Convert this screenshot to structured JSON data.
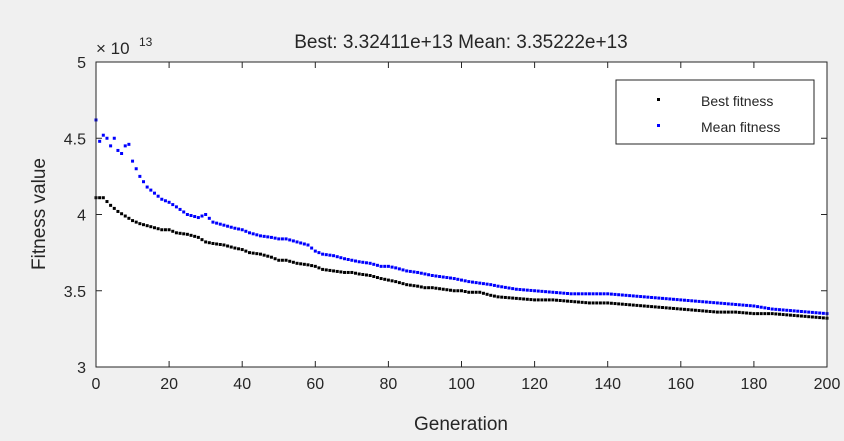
{
  "chart_data": {
    "type": "scatter",
    "title": "Best: 3.32411e+13 Mean: 3.35222e+13",
    "xlabel": "Generation",
    "ylabel": "Fitness value",
    "y_exponent_label": "× 10",
    "y_exponent_power": "13",
    "xlim": [
      0,
      200
    ],
    "ylim": [
      3,
      5
    ],
    "xticks": [
      0,
      20,
      40,
      60,
      80,
      100,
      120,
      140,
      160,
      180,
      200
    ],
    "yticks": [
      3,
      3.5,
      4,
      4.5,
      5
    ],
    "xtick_labels": [
      "0",
      "20",
      "40",
      "60",
      "80",
      "100",
      "120",
      "140",
      "160",
      "180",
      "200"
    ],
    "ytick_labels": [
      "3",
      "3.5",
      "4",
      "4.5",
      "5"
    ],
    "grid": false,
    "legend_position": "top-right",
    "y_scale_factor": 10000000000000.0,
    "series": [
      {
        "name": "Best fitness",
        "color": "#000000",
        "key_x": [
          0,
          2,
          4,
          6,
          8,
          10,
          12,
          15,
          18,
          20,
          22,
          25,
          28,
          30,
          32,
          35,
          38,
          40,
          42,
          45,
          48,
          50,
          52,
          55,
          58,
          60,
          62,
          65,
          68,
          70,
          72,
          75,
          78,
          80,
          82,
          85,
          88,
          90,
          92,
          95,
          98,
          100,
          102,
          105,
          108,
          110,
          115,
          120,
          125,
          130,
          135,
          140,
          145,
          150,
          155,
          160,
          165,
          170,
          175,
          180,
          185,
          190,
          195,
          200
        ],
        "key_y": [
          4.11,
          4.11,
          4.06,
          4.02,
          3.99,
          3.96,
          3.94,
          3.92,
          3.9,
          3.9,
          3.88,
          3.87,
          3.85,
          3.82,
          3.81,
          3.8,
          3.78,
          3.77,
          3.75,
          3.74,
          3.72,
          3.7,
          3.7,
          3.68,
          3.67,
          3.66,
          3.64,
          3.63,
          3.62,
          3.62,
          3.61,
          3.6,
          3.58,
          3.57,
          3.56,
          3.54,
          3.53,
          3.52,
          3.52,
          3.51,
          3.5,
          3.5,
          3.49,
          3.49,
          3.47,
          3.46,
          3.45,
          3.44,
          3.44,
          3.43,
          3.42,
          3.42,
          3.41,
          3.4,
          3.39,
          3.38,
          3.37,
          3.36,
          3.36,
          3.35,
          3.35,
          3.34,
          3.33,
          3.32
        ]
      },
      {
        "name": "Mean fitness",
        "color": "#0000ff",
        "key_x": [
          0,
          1,
          2,
          3,
          4,
          5,
          6,
          7,
          8,
          9,
          10,
          12,
          14,
          16,
          18,
          20,
          22,
          25,
          28,
          30,
          32,
          35,
          38,
          40,
          42,
          45,
          48,
          50,
          52,
          55,
          58,
          60,
          62,
          65,
          68,
          70,
          72,
          75,
          78,
          80,
          82,
          85,
          88,
          90,
          92,
          95,
          98,
          100,
          102,
          105,
          108,
          110,
          115,
          120,
          125,
          130,
          135,
          140,
          145,
          150,
          155,
          160,
          165,
          170,
          175,
          180,
          185,
          190,
          195,
          200
        ],
        "key_y": [
          4.62,
          4.48,
          4.52,
          4.5,
          4.45,
          4.5,
          4.42,
          4.4,
          4.45,
          4.46,
          4.35,
          4.25,
          4.18,
          4.14,
          4.1,
          4.08,
          4.05,
          4.0,
          3.98,
          4.0,
          3.95,
          3.93,
          3.91,
          3.9,
          3.88,
          3.86,
          3.85,
          3.84,
          3.84,
          3.82,
          3.8,
          3.76,
          3.74,
          3.73,
          3.71,
          3.7,
          3.69,
          3.68,
          3.66,
          3.66,
          3.65,
          3.63,
          3.62,
          3.61,
          3.6,
          3.59,
          3.58,
          3.57,
          3.56,
          3.55,
          3.54,
          3.53,
          3.51,
          3.5,
          3.49,
          3.48,
          3.48,
          3.48,
          3.47,
          3.46,
          3.45,
          3.44,
          3.43,
          3.42,
          3.41,
          3.4,
          3.38,
          3.37,
          3.36,
          3.35
        ]
      }
    ]
  }
}
